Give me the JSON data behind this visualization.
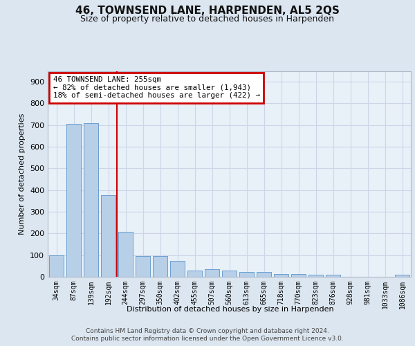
{
  "title": "46, TOWNSEND LANE, HARPENDEN, AL5 2QS",
  "subtitle": "Size of property relative to detached houses in Harpenden",
  "xlabel": "Distribution of detached houses by size in Harpenden",
  "ylabel": "Number of detached properties",
  "categories": [
    "34sqm",
    "87sqm",
    "139sqm",
    "192sqm",
    "244sqm",
    "297sqm",
    "350sqm",
    "402sqm",
    "455sqm",
    "507sqm",
    "560sqm",
    "613sqm",
    "665sqm",
    "718sqm",
    "770sqm",
    "823sqm",
    "876sqm",
    "928sqm",
    "981sqm",
    "1033sqm",
    "1086sqm"
  ],
  "values": [
    100,
    707,
    709,
    376,
    208,
    97,
    95,
    73,
    30,
    35,
    28,
    22,
    22,
    12,
    12,
    10,
    8,
    0,
    0,
    0,
    10
  ],
  "bar_color": "#b8cfe8",
  "bar_edge_color": "#6a9fd0",
  "red_line_index": 4,
  "red_line_color": "#cc0000",
  "annotation_text": "46 TOWNSEND LANE: 255sqm\n← 82% of detached houses are smaller (1,943)\n18% of semi-detached houses are larger (422) →",
  "annotation_box_facecolor": "#ffffff",
  "annotation_box_edgecolor": "#cc0000",
  "grid_color": "#ccd6e8",
  "background_color": "#dce6f0",
  "plot_bg_color": "#e8f0f8",
  "ylim": [
    0,
    950
  ],
  "yticks": [
    0,
    100,
    200,
    300,
    400,
    500,
    600,
    700,
    800,
    900
  ],
  "title_fontsize": 11,
  "subtitle_fontsize": 9,
  "ylabel_fontsize": 8,
  "xlabel_fontsize": 8,
  "tick_fontsize": 7,
  "footer_line1": "Contains HM Land Registry data © Crown copyright and database right 2024.",
  "footer_line2": "Contains public sector information licensed under the Open Government Licence v3.0."
}
